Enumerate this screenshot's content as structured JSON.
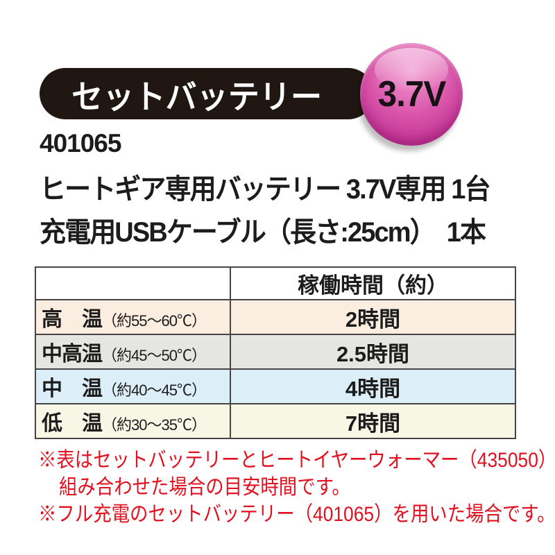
{
  "banner": {
    "label": "セットバッテリー",
    "voltage_badge": "3.7V"
  },
  "product": {
    "code": "401065",
    "spec_line1": "ヒートギア専用バッテリー 3.7V専用 1台",
    "spec_line2": "充電用USBケーブル（長さ:25cm）　1本"
  },
  "table": {
    "header": {
      "mode_col": "",
      "time_col": "稼働時間（約）"
    },
    "rows": [
      {
        "mode": "高　温",
        "range": "（約55～60℃）",
        "time": "2時間"
      },
      {
        "mode": "中高温",
        "range": "（約45～50℃）",
        "time": "2.5時間"
      },
      {
        "mode": "中　温",
        "range": "（約40～45℃）",
        "time": "4時間"
      },
      {
        "mode": "低　温",
        "range": "（約30～35℃）",
        "time": "7時間"
      }
    ]
  },
  "notes": {
    "note1_line1": "※表はセットバッテリーとヒートイヤーウォーマー（435050）を",
    "note1_line2": "組み合わせた場合の目安時間です。",
    "note2": "※フル充電のセットバッテリー（401065）を用いた場合です。"
  },
  "colors": {
    "banner_bg": "#201713",
    "badge_pink": "#d44ba0",
    "badge_pink_light": "#f09bd2",
    "badge_text": "#181216",
    "note_red": "#e3101f",
    "table_border": "#454545",
    "row_high_bg": "#fbeee1",
    "row_midhigh_bg": "#e5e6e2",
    "row_mid_bg": "#dceef8",
    "row_low_bg": "#f8f6e5",
    "body_text": "#1c1c1c",
    "page_bg": "#ffffff"
  }
}
